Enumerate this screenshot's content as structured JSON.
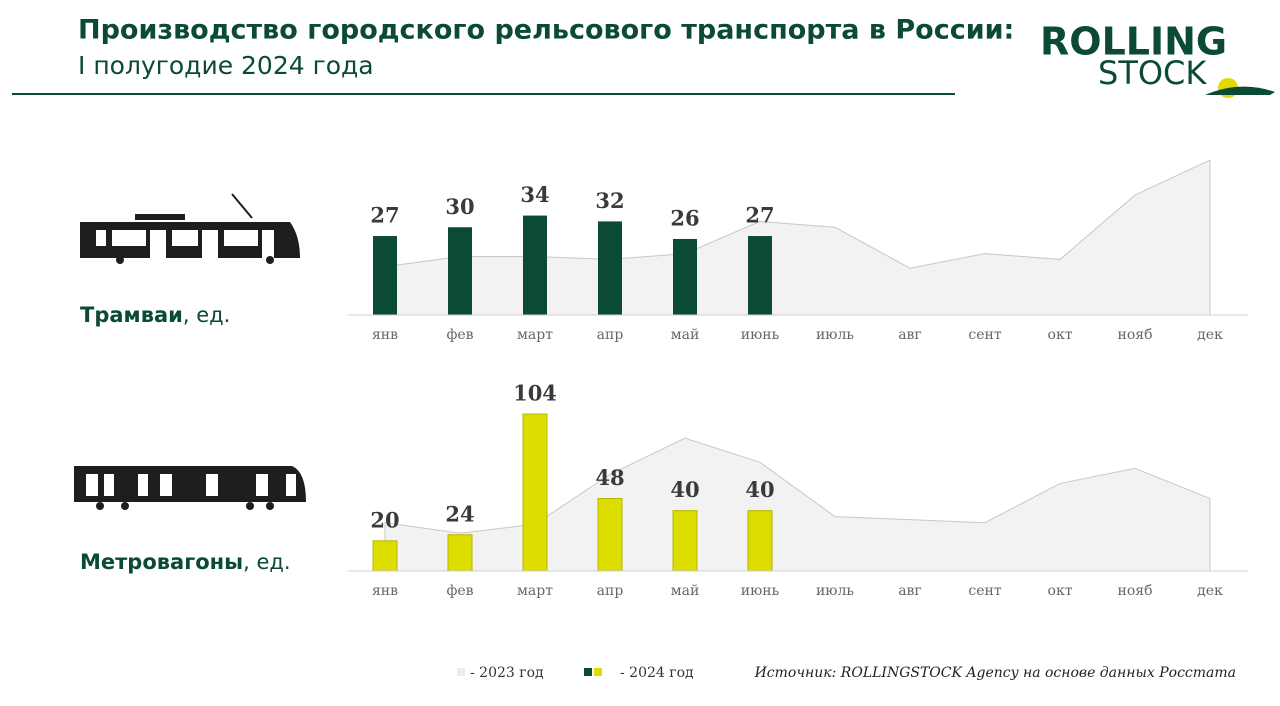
{
  "header": {
    "title": "Производство городского рельсового транспорта в России:",
    "subtitle": "I полугодие 2024 года",
    "logo_top": "ROLLING",
    "logo_bottom": "STOCK"
  },
  "source": "Источник: ROLLINGSTOCK Agency на основе данных Росстата",
  "chart_data": [
    {
      "type": "bar",
      "title": "Трамваи",
      "unit": ", ед.",
      "categories": [
        "янв",
        "фев",
        "март",
        "апр",
        "май",
        "июнь",
        "июль",
        "авг",
        "сент",
        "окт",
        "нояб",
        "дек"
      ],
      "series": [
        {
          "name": "- 2023 год",
          "color": "#f2f2f2",
          "values": [
            16.5,
            20,
            20,
            19,
            21,
            32,
            30,
            16,
            21,
            19,
            41,
            53
          ]
        },
        {
          "name": "- 2024 год",
          "color": "#0b4a34",
          "values": [
            27,
            30,
            34,
            32,
            26,
            27,
            null,
            null,
            null,
            null,
            null,
            null
          ]
        }
      ]
    },
    {
      "type": "bar",
      "title": "Метровагоны",
      "unit": ", ед.",
      "categories": [
        "янв",
        "фев",
        "март",
        "апр",
        "май",
        "июнь",
        "июль",
        "авг",
        "сент",
        "окт",
        "нояб",
        "дек"
      ],
      "series": [
        {
          "name": "- 2023 год",
          "color": "#f2f2f2",
          "values": [
            32,
            25,
            31,
            64,
            88,
            72,
            36,
            34,
            32,
            58,
            68,
            48
          ]
        },
        {
          "name": "- 2024 год",
          "color": "#dddd00",
          "values": [
            20,
            24,
            104,
            48,
            40,
            40,
            null,
            null,
            null,
            null,
            null,
            null
          ]
        }
      ]
    }
  ]
}
